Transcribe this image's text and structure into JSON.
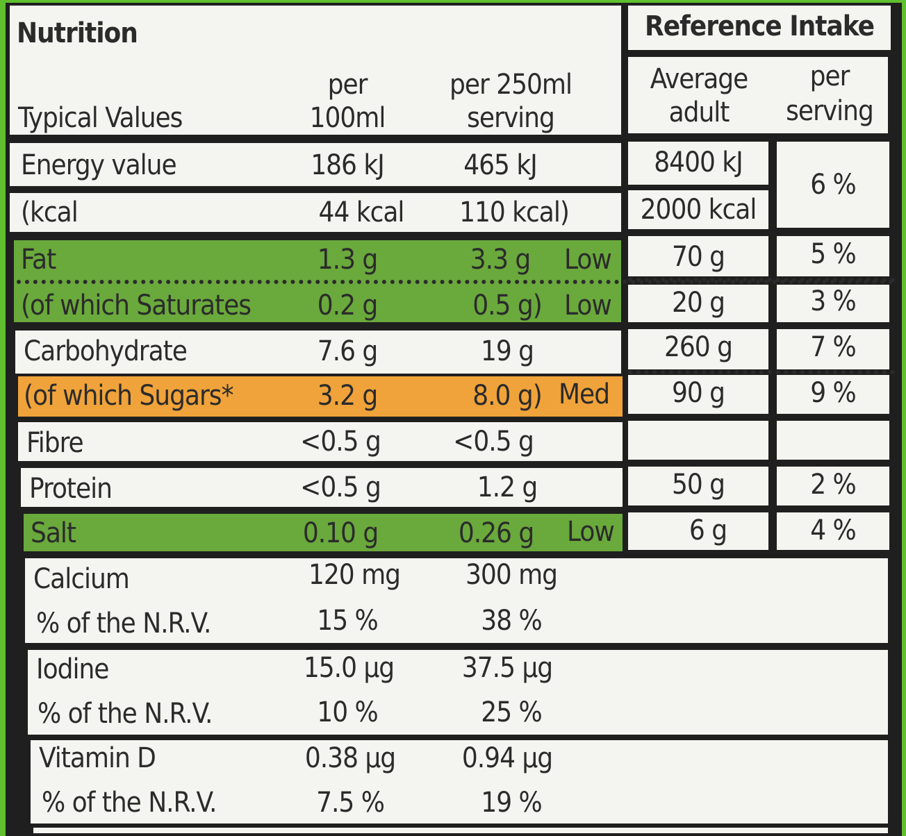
{
  "header": {
    "title": "Nutrition",
    "typical_values": "Typical Values",
    "per100_l1": "per",
    "per100_l2": "100ml",
    "perserv_l1": "per 250ml",
    "perserv_l2": "serving",
    "ref_title": "Reference Intake",
    "avg_l1": "Average",
    "avg_l2": "adult",
    "ps_l1": "per",
    "ps_l2": "serving"
  },
  "rows": {
    "energy": {
      "name": "Energy value",
      "per100": "186 kJ",
      "perserv": "465 kJ",
      "ri": "8400 kJ",
      "pct": "6 %"
    },
    "kcal": {
      "name": "(kcal",
      "per100": "44 kcal",
      "perserv": "110 kcal)",
      "ri": "2000 kcal"
    },
    "fat": {
      "name": "Fat",
      "per100": "1.3 g",
      "perserv": "3.3 g",
      "level": "Low",
      "ri": "70 g",
      "pct": "5 %"
    },
    "sat": {
      "name": "(of which Saturates",
      "per100": "0.2 g",
      "perserv": "0.5 g)",
      "level": "Low",
      "ri": "20 g",
      "pct": "3 %"
    },
    "carb": {
      "name": "Carbohydrate",
      "per100": "7.6 g",
      "perserv": "19 g",
      "ri": "260 g",
      "pct": "7 %"
    },
    "sugar": {
      "name": "(of which Sugars*",
      "per100": "3.2 g",
      "perserv": "8.0 g)",
      "level": "Med",
      "ri": "90 g",
      "pct": "9 %"
    },
    "fibre": {
      "name": "Fibre",
      "per100": "<0.5 g",
      "perserv": "<0.5 g"
    },
    "protein": {
      "name": "Protein",
      "per100": "<0.5 g",
      "perserv": "1.2 g",
      "ri": "50 g",
      "pct": "2 %"
    },
    "salt": {
      "name": "Salt",
      "per100": "0.10 g",
      "perserv": "0.26 g",
      "level": "Low",
      "ri": "6 g",
      "pct": "4 %"
    }
  },
  "vitamins": [
    {
      "name": "Calcium",
      "per100": "120 mg",
      "perserv": "300 mg",
      "nrv_label": "% of the N.R.V.",
      "nrv100": "15 %",
      "nrvserv": "38 %"
    },
    {
      "name": "Iodine",
      "per100": "15.0 µg",
      "perserv": "37.5 µg",
      "nrv_label": "% of the N.R.V.",
      "nrv100": "10 %",
      "nrvserv": "25 %"
    },
    {
      "name": "Vitamin D",
      "per100": "0.38 µg",
      "perserv": "0.94 µg",
      "nrv_label": "% of the N.R.V.",
      "nrv100": "7.5 %",
      "nrvserv": "19 %"
    }
  ],
  "colors": {
    "low": "#6aa93c",
    "med": "#f0a33a",
    "background": "#5fbf2e"
  }
}
